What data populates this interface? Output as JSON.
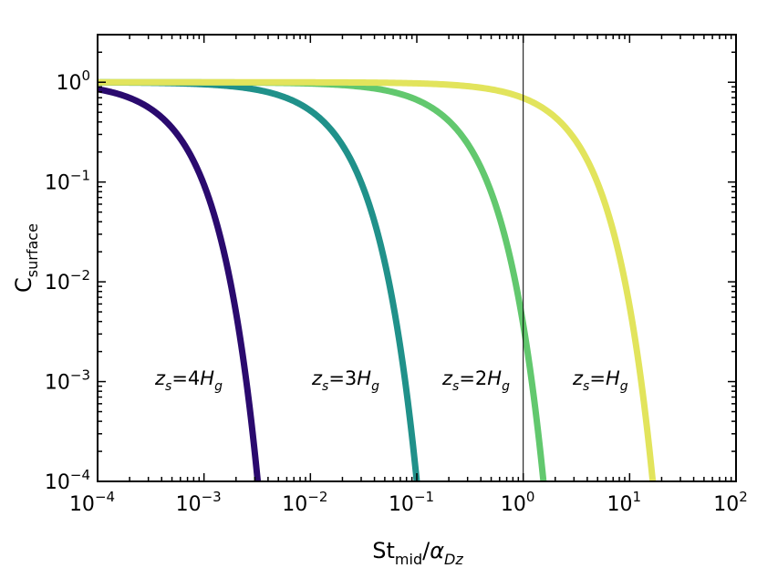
{
  "chart_data": {
    "type": "line",
    "xscale": "log",
    "yscale": "log",
    "xlim": [
      0.0001,
      100
    ],
    "ylim": [
      0.0001,
      3
    ],
    "xlabel": "St_mid/α_Dz",
    "ylabel": "C_surface",
    "grid": false,
    "x_ticks": [
      {
        "base": "10",
        "exp": "−4",
        "value": 0.0001
      },
      {
        "base": "10",
        "exp": "−3",
        "value": 0.001
      },
      {
        "base": "10",
        "exp": "−2",
        "value": 0.01
      },
      {
        "base": "10",
        "exp": "−1",
        "value": 0.1
      },
      {
        "base": "10",
        "exp": "0",
        "value": 1
      },
      {
        "base": "10",
        "exp": "1",
        "value": 10
      },
      {
        "base": "10",
        "exp": "2",
        "value": 100
      }
    ],
    "y_ticks": [
      {
        "base": "10",
        "exp": "−4",
        "value": 0.0001
      },
      {
        "base": "10",
        "exp": "−3",
        "value": 0.001
      },
      {
        "base": "10",
        "exp": "−2",
        "value": 0.01
      },
      {
        "base": "10",
        "exp": "−1",
        "value": 0.1
      },
      {
        "base": "10",
        "exp": "0",
        "value": 1
      }
    ],
    "vline": {
      "x": 1
    },
    "series": [
      {
        "label": "z_s=4H_g",
        "label_parts": {
          "var": "z",
          "sub": "s",
          "eq": "=",
          "coef": "4",
          "h": "H",
          "hsub": "g"
        },
        "color": "#2a0a6e",
        "x_at_half": 0.00035,
        "x_ymin": 0.0032
      },
      {
        "label": "z_s=3H_g",
        "label_parts": {
          "var": "z",
          "sub": "s",
          "eq": "=",
          "coef": "3",
          "h": "H",
          "hsub": "g"
        },
        "color": "#20918a",
        "x_at_half": 0.0105,
        "x_ymin": 0.1
      },
      {
        "label": "z_s=2H_g",
        "label_parts": {
          "var": "z",
          "sub": "s",
          "eq": "=",
          "coef": "2",
          "h": "H",
          "hsub": "g"
        },
        "color": "#62c86e",
        "x_at_half": 0.16,
        "x_ymin": 1.55
      },
      {
        "label": "z_s=H_g",
        "label_parts": {
          "var": "z",
          "sub": "s",
          "eq": "=",
          "coef": "",
          "h": "H",
          "hsub": "g"
        },
        "color": "#e2e45c",
        "x_at_half": 1.75,
        "x_ymin": 16.5
      }
    ]
  }
}
